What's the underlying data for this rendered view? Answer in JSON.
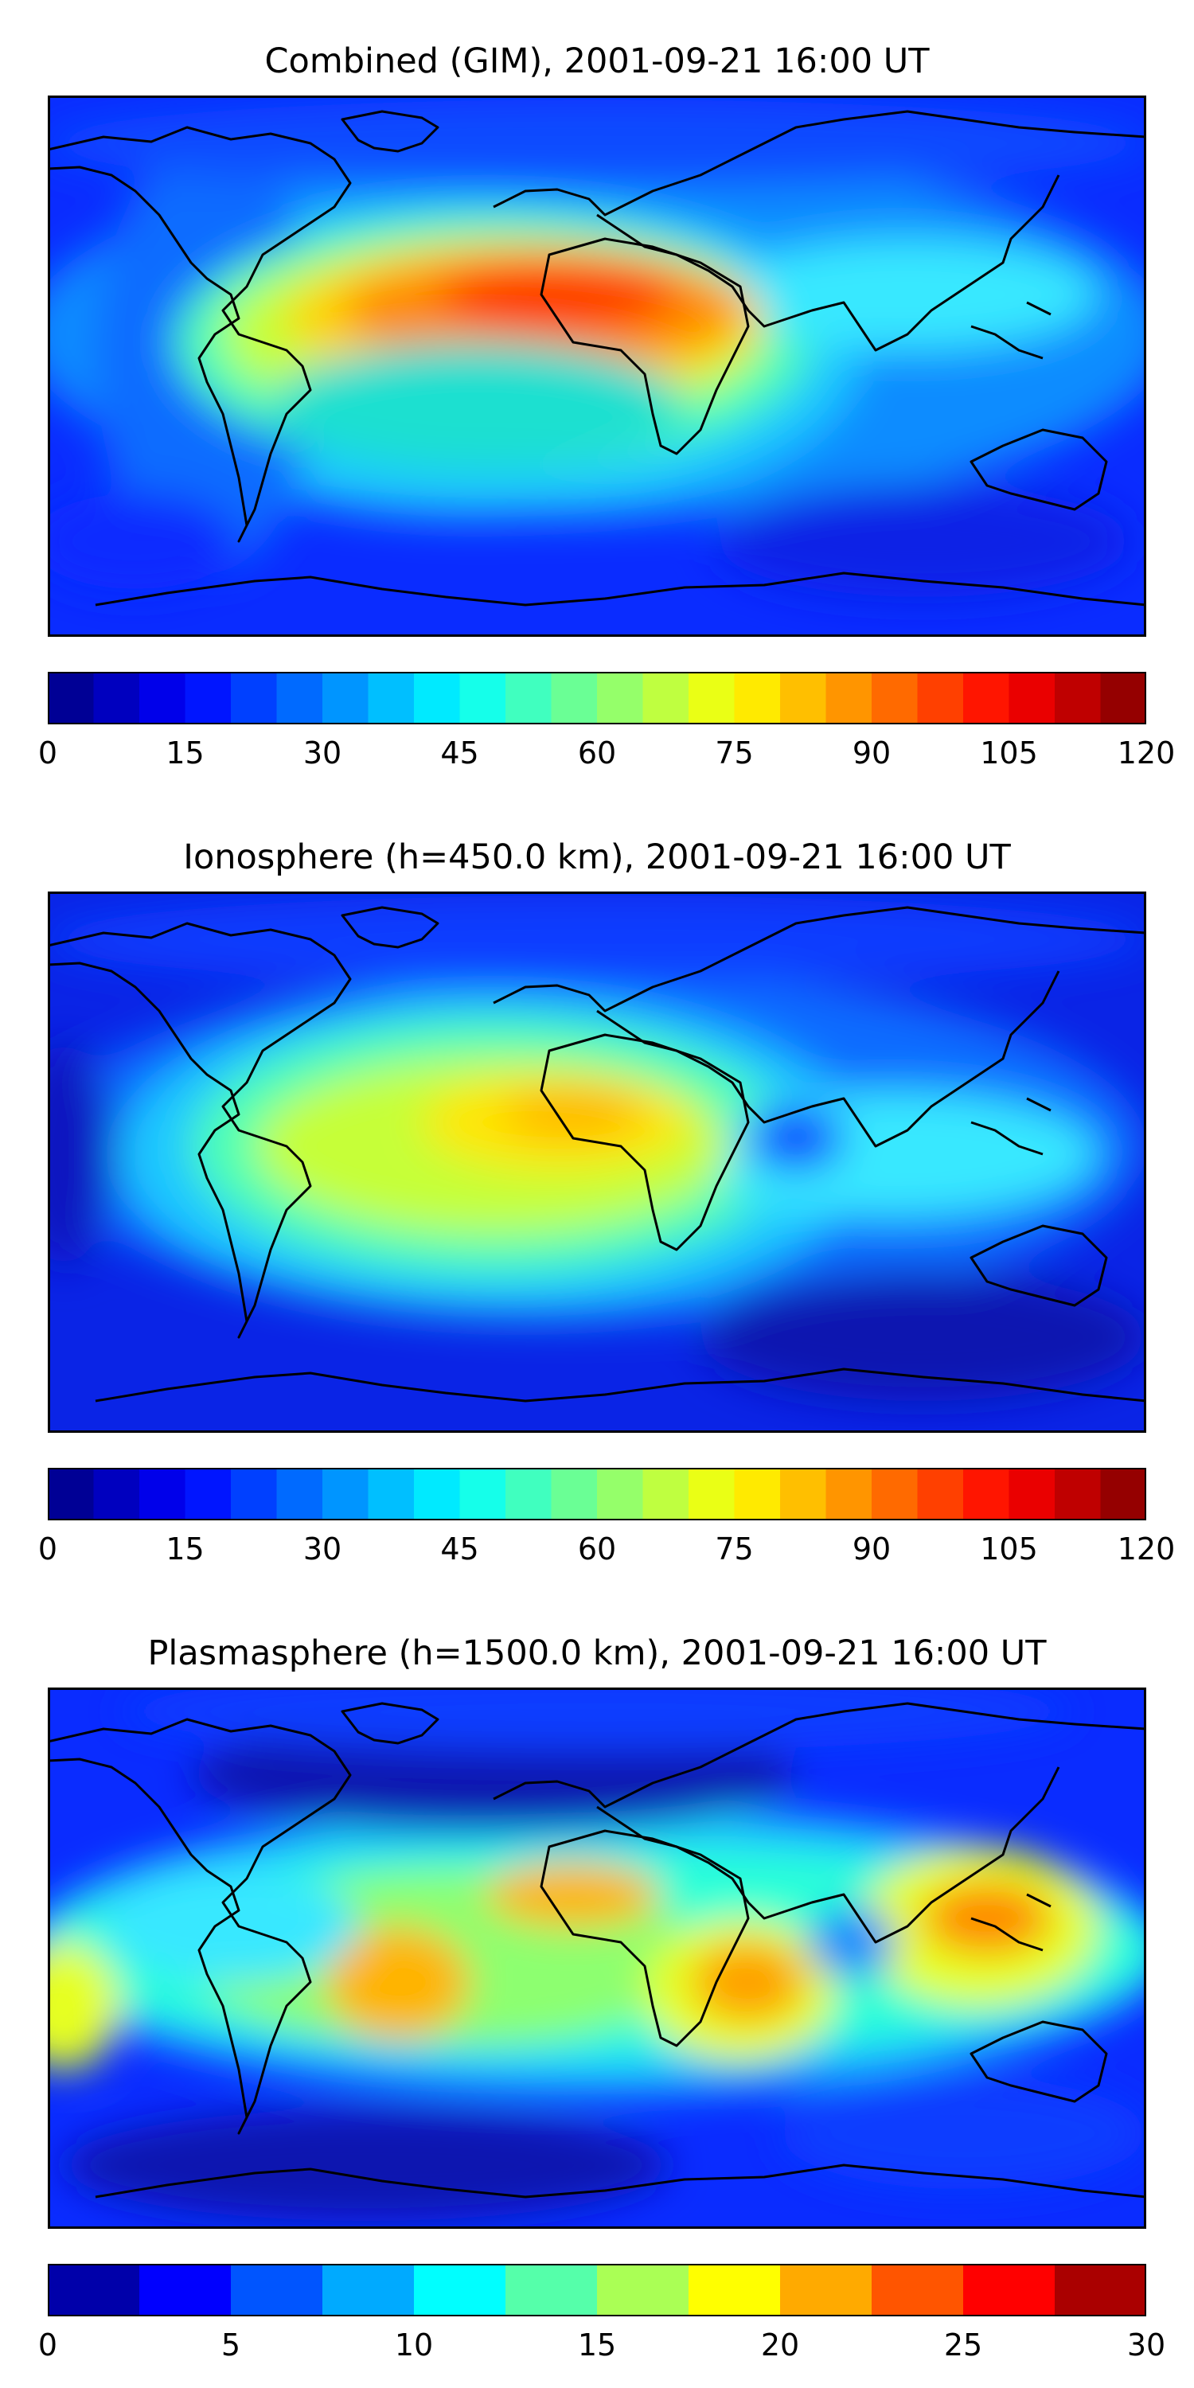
{
  "panels": [
    {
      "id": "combined",
      "title": "Combined (GIM), 2001-09-21 16:00 UT",
      "colorbar": {
        "vmin": 0,
        "vmax": 120,
        "levels": 24,
        "ticks": [
          "0",
          "15",
          "30",
          "45",
          "60",
          "75",
          "90",
          "105",
          "120"
        ]
      }
    },
    {
      "id": "ionosphere",
      "title": "Ionosphere  (h=450.0 km), 2001-09-21 16:00 UT",
      "colorbar": {
        "vmin": 0,
        "vmax": 120,
        "levels": 24,
        "ticks": [
          "0",
          "15",
          "30",
          "45",
          "60",
          "75",
          "90",
          "105",
          "120"
        ]
      }
    },
    {
      "id": "plasmasphere",
      "title": "Plasmasphere (h=1500.0 km), 2001-09-21 16:00 UT",
      "colorbar": {
        "vmin": 0,
        "vmax": 30,
        "levels": 12,
        "ticks": [
          "0",
          "5",
          "10",
          "15",
          "20",
          "25",
          "30"
        ]
      }
    }
  ],
  "colormap": "jet",
  "colors": {
    "coastline": "#000000",
    "background": "#0a1bff"
  }
}
